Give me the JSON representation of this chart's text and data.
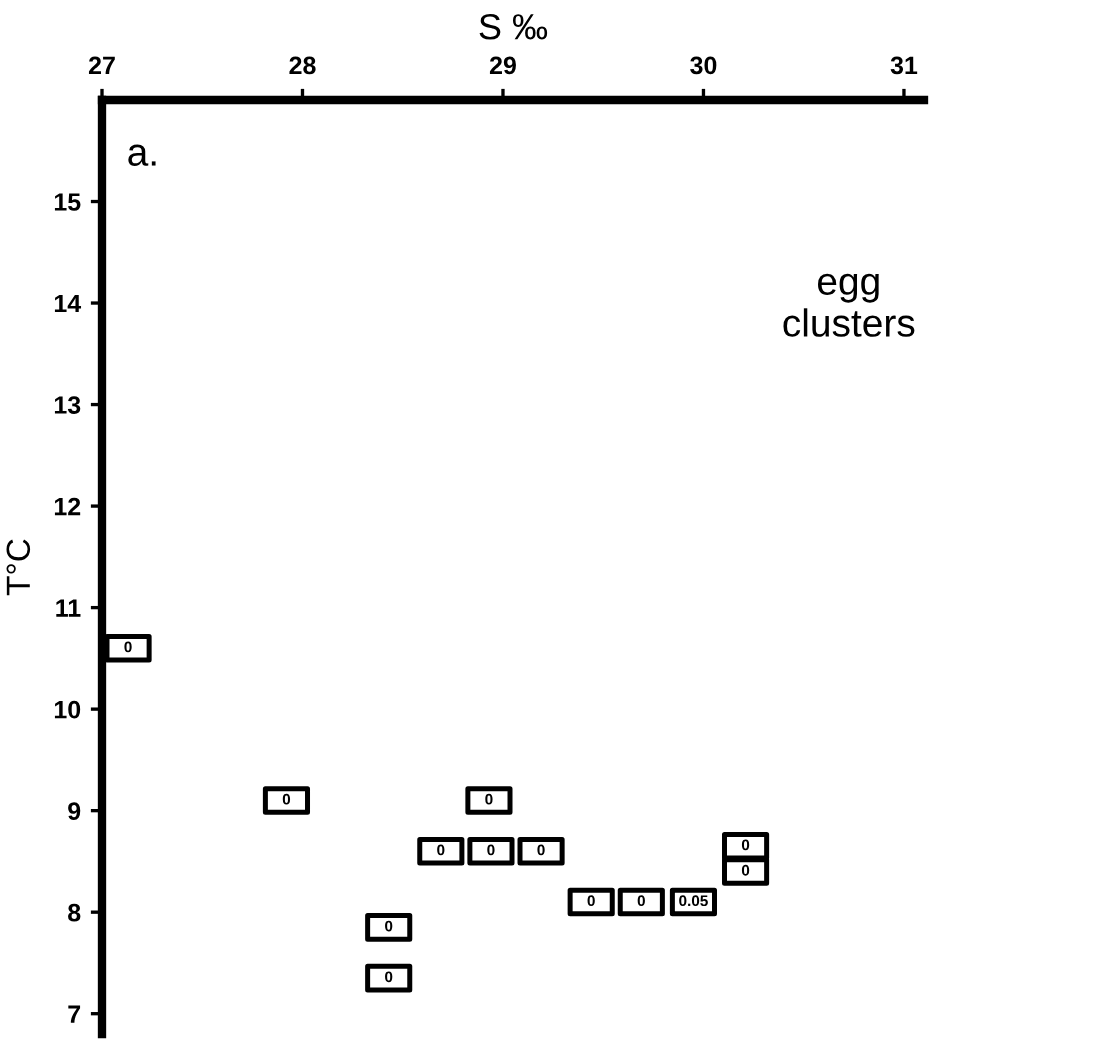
{
  "chart_data": {
    "type": "scatter",
    "xlabel": "S ‰",
    "ylabel": "T°C",
    "annotations": [
      "a.",
      "egg clusters",
      {
        "text": "0",
        "x": 27.13,
        "y": 10.6
      },
      {
        "text": "0",
        "x": 27.92,
        "y": 9.1
      },
      {
        "text": "0",
        "x": 28.43,
        "y": 7.85
      },
      {
        "text": "0",
        "x": 28.43,
        "y": 7.35
      },
      {
        "text": "0",
        "x": 28.93,
        "y": 9.1
      },
      {
        "text": "0",
        "x": 28.69,
        "y": 8.6
      },
      {
        "text": "0",
        "x": 28.94,
        "y": 8.6
      },
      {
        "text": "0",
        "x": 29.19,
        "y": 8.6
      },
      {
        "text": "0",
        "x": 29.44,
        "y": 8.1
      },
      {
        "text": "0",
        "x": 29.69,
        "y": 8.1
      },
      {
        "text": "0.05",
        "x": 29.95,
        "y": 8.1
      },
      {
        "text": "0",
        "x": 30.21,
        "y": 8.65
      },
      {
        "text": "0",
        "x": 30.21,
        "y": 8.4
      }
    ],
    "xlim": [
      27,
      31.1
    ],
    "xticks": [
      27,
      28,
      29,
      30,
      31
    ],
    "ylim": [
      6.8,
      16
    ],
    "yticks": [
      7,
      8,
      9,
      10,
      11,
      12,
      13,
      14,
      15
    ],
    "grid": false,
    "marker": "square",
    "series": [
      {
        "color": "#000000",
        "x": [
          27.13,
          27.92,
          28.43,
          28.43,
          28.93,
          28.69,
          28.94,
          29.19,
          29.44,
          29.69,
          29.95,
          30.21,
          30.21
        ],
        "values": [
          10.6,
          9.1,
          7.85,
          7.35,
          9.1,
          8.6,
          8.6,
          8.6,
          8.1,
          8.1,
          8.1,
          8.65,
          8.4
        ]
      }
    ]
  }
}
